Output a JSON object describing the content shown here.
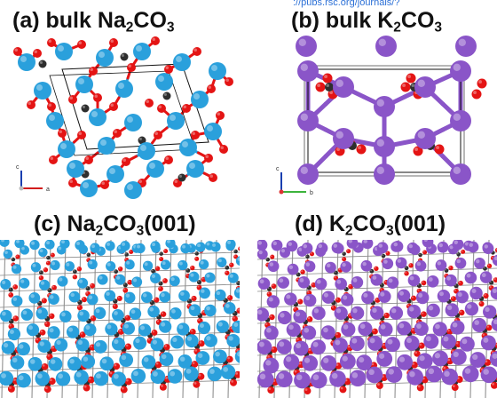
{
  "source_url": "://pubs.rsc.org/journals/?",
  "colors": {
    "na": "#2aa0dc",
    "k": "#8a55c8",
    "oxygen": "#e41414",
    "carbon": "#2e2e2e",
    "cell": "#111111"
  },
  "panels": [
    {
      "id": "a",
      "prefix": "(a) bulk Na",
      "sub1": "2",
      "mid": "CO",
      "sub2": "3",
      "suffix": "",
      "axes": [
        "c",
        "a"
      ]
    },
    {
      "id": "b",
      "prefix": "(b) bulk K",
      "sub1": "2",
      "mid": "CO",
      "sub2": "3",
      "suffix": "",
      "axes": [
        "c",
        "b"
      ]
    },
    {
      "id": "c",
      "prefix": "(c) Na",
      "sub1": "2",
      "mid": "CO",
      "sub2": "3",
      "suffix": "(001)"
    },
    {
      "id": "d",
      "prefix": "(d) K",
      "sub1": "2",
      "mid": "CO",
      "sub2": "3",
      "suffix": "(001)"
    }
  ]
}
